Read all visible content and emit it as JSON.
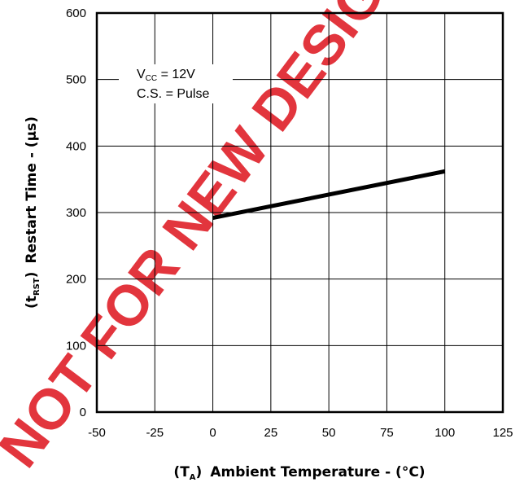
{
  "chart_data": {
    "type": "line",
    "xlim": [
      -50,
      125
    ],
    "ylim": [
      0,
      600
    ],
    "x_ticks": [
      -50,
      -25,
      0,
      25,
      50,
      75,
      100,
      125
    ],
    "y_ticks": [
      0,
      100,
      200,
      300,
      400,
      500,
      600
    ],
    "series": [
      {
        "x": [
          0,
          100
        ],
        "y": [
          292,
          362
        ]
      }
    ],
    "grid": true,
    "xlabel": {
      "open": "(T",
      "sub": "A",
      "close": ")",
      "text": "Ambient Temperature - (°C)"
    },
    "ylabel": {
      "open": "(t",
      "sub": "RST",
      "close": ")",
      "text": "Restart Time - (µs)"
    },
    "annotation": {
      "line1_prefix": "V",
      "line1_sub": "CC",
      "line1_suffix": " = 12V",
      "line2": "C.S. = Pulse"
    },
    "watermark": "NOT FOR NEW DESIGN",
    "colors": {
      "line": "#000000",
      "grid": "#000000",
      "watermark": "#e2353d"
    }
  }
}
